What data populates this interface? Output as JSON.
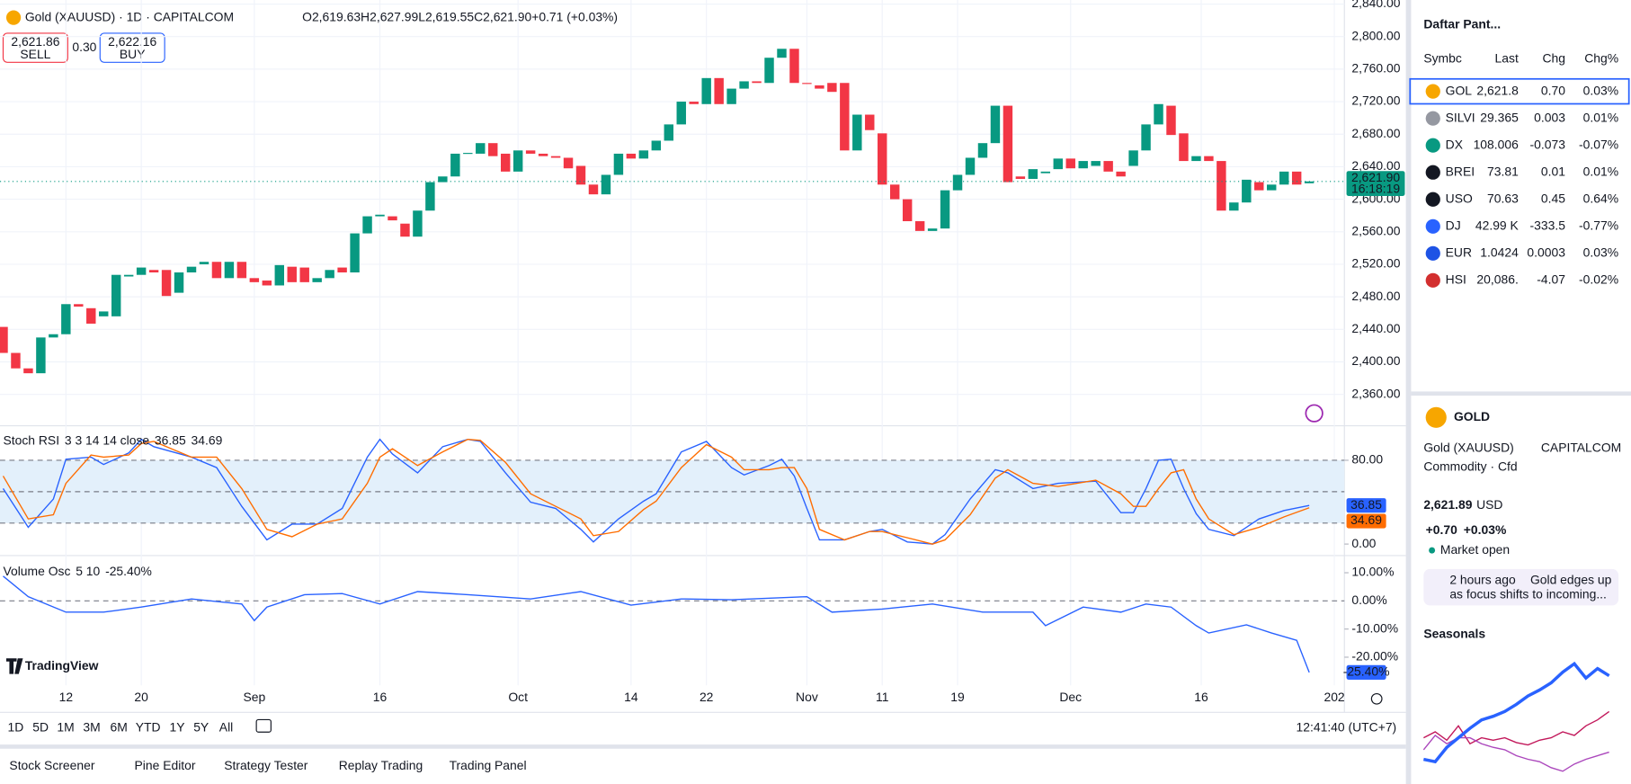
{
  "header": {
    "symbol": "Gold (XAUUSD) · 1D · CAPITALCOM",
    "ohlc": [
      "O",
      "2,619.63",
      "H",
      "2,627.99",
      "L",
      "2,619.55",
      "C",
      "2,621.90",
      "+0.71 (+0.03%)"
    ],
    "sell_price": "2,621.86",
    "sell": "SELL",
    "spread": "0.30",
    "buy_price": "2,622.16",
    "buy": "BUY",
    "price_tag": "2,621.90",
    "countdown": "16:18:19"
  },
  "stoch_legend": {
    "name": "Stoch RSI",
    "params": "3 3 14 14 close",
    "k": "36.85",
    "d": "34.69"
  },
  "vol_legend": {
    "name": "Volume Osc",
    "params": "5 10",
    "value": "-25.40%"
  },
  "logo": "TradingView",
  "timeframes": [
    "1D",
    "5D",
    "1M",
    "3M",
    "6M",
    "YTD",
    "1Y",
    "5Y",
    "All"
  ],
  "clock": "12:41:40 (UTC+7)",
  "tabs": [
    "Stock Screener",
    "Pine Editor",
    "Strategy Tester",
    "Replay Trading",
    "Trading Panel"
  ],
  "watchlist": {
    "title": "Daftar Pant...",
    "columns": [
      "Symbc",
      "Last",
      "Chg",
      "Chg%"
    ],
    "rows": [
      [
        "GOL",
        "2,621.8",
        "0.70",
        "0.03%"
      ],
      [
        "SILVI",
        "29.365",
        "0.003",
        "0.01%"
      ],
      [
        "DX",
        "108.006",
        "-0.073",
        "-0.07%"
      ],
      [
        "BREI",
        "73.81",
        "0.01",
        "0.01%"
      ],
      [
        "USO",
        "70.63",
        "0.45",
        "0.64%"
      ],
      [
        "DJ",
        "42.99 K",
        "-333.5",
        "-0.77%"
      ],
      [
        "EUR",
        "1.0424",
        "0.0003",
        "0.03%"
      ],
      [
        "HSI",
        "20,086.",
        "-4.07",
        "-0.02%"
      ]
    ]
  },
  "details": {
    "ticker": "GOLD",
    "name": "Gold (XAUUSD)",
    "exchange": "CAPITALCOM",
    "kind": "Commodity · Cfd",
    "price": "2,621.89",
    "currency": "USD",
    "change": "+0.70",
    "change_pct": "+0.03%",
    "status": "Market open",
    "news_time": "2 hours ago",
    "news_lines": [
      "Gold edges up",
      "as focus shifts to incoming..."
    ],
    "seasonals": "Seasonals"
  },
  "chart_data": [
    {
      "type": "candlestick",
      "up_color": "#089981",
      "down_color": "#f23645",
      "xlim": [
        -0.25,
        106.8
      ],
      "ylim": [
        2324,
        2845
      ],
      "grid": true,
      "xticks": [
        {
          "value": 5,
          "label": "12"
        },
        {
          "value": 11,
          "label": "20"
        },
        {
          "value": 20,
          "label": "Sep"
        },
        {
          "value": 30,
          "label": "16"
        },
        {
          "value": 41,
          "label": "Oct"
        },
        {
          "value": 50,
          "label": "14"
        },
        {
          "value": 56,
          "label": "22"
        },
        {
          "value": 64,
          "label": "Nov"
        },
        {
          "value": 70,
          "label": "11"
        },
        {
          "value": 76,
          "label": "19"
        },
        {
          "value": 85,
          "label": "Dec"
        },
        {
          "value": 95.4,
          "label": "16"
        },
        {
          "value": 106,
          "label": "202"
        }
      ],
      "yticks": [
        {
          "value": 2360,
          "label": "2,360.00"
        },
        {
          "value": 2400,
          "label": "2,400.00"
        },
        {
          "value": 2440,
          "label": "2,440.00"
        },
        {
          "value": 2480,
          "label": "2,480.00"
        },
        {
          "value": 2520,
          "label": "2,520.00"
        },
        {
          "value": 2560,
          "label": "2,560.00"
        },
        {
          "value": 2600,
          "label": "2,600.00"
        },
        {
          "value": 2640,
          "label": "2,640.00"
        },
        {
          "value": 2680,
          "label": "2,680.00"
        },
        {
          "value": 2720,
          "label": "2,720.00"
        },
        {
          "value": 2760,
          "label": "2,760.00"
        },
        {
          "value": 2800,
          "label": "2,800.00"
        },
        {
          "value": 2840,
          "label": "2,840.00"
        }
      ],
      "open": [
        2443,
        2411,
        2392,
        2386,
        2430,
        2434,
        2471,
        2466,
        2456,
        2456,
        2505,
        2507,
        2513,
        2513,
        2485,
        2510,
        2520,
        2523,
        2503,
        2523,
        2503,
        2500,
        2494,
        2517,
        2516,
        2498,
        2503,
        2516,
        2510,
        2558,
        2579,
        2579,
        2570,
        2554,
        2586,
        2621,
        2628,
        2656,
        2656,
        2669,
        2656,
        2634,
        2660,
        2656,
        2653,
        2651,
        2641,
        2618,
        2606,
        2630,
        2656,
        2650,
        2660,
        2672,
        2692,
        2720,
        2717,
        2749,
        2717,
        2736,
        2745,
        2743,
        2774,
        2785,
        2743,
        2740,
        2743,
        2743,
        2660,
        2704,
        2681,
        2618,
        2600,
        2573,
        2561,
        2564,
        2611,
        2630,
        2651,
        2669,
        2715,
        2628,
        2625,
        2632,
        2637,
        2650,
        2638,
        2641,
        2647,
        2634,
        2641,
        2660,
        2692,
        2715,
        2681,
        2647,
        2653,
        2647,
        2586,
        2596,
        2621,
        2611,
        2618,
        2634,
        2619.63
      ],
      "close": [
        2411,
        2392,
        2386,
        2430,
        2434,
        2471,
        2468,
        2447,
        2462,
        2507,
        2507,
        2516,
        2510,
        2481,
        2510,
        2517,
        2523,
        2503,
        2523,
        2503,
        2498,
        2494,
        2519,
        2498,
        2498,
        2503,
        2513,
        2510,
        2558,
        2579,
        2581,
        2574,
        2554,
        2586,
        2621,
        2628,
        2656,
        2657,
        2669,
        2653,
        2634,
        2660,
        2656,
        2653,
        2651,
        2638,
        2618,
        2606,
        2630,
        2656,
        2650,
        2660,
        2672,
        2692,
        2720,
        2717,
        2749,
        2717,
        2736,
        2745,
        2743,
        2774,
        2785,
        2743,
        2742,
        2736,
        2732,
        2660,
        2704,
        2685,
        2618,
        2600,
        2573,
        2561,
        2564,
        2611,
        2630,
        2651,
        2669,
        2715,
        2621,
        2625,
        2637,
        2634,
        2650,
        2638,
        2647,
        2647,
        2634,
        2628,
        2660,
        2692,
        2717,
        2679,
        2647,
        2653,
        2647,
        2586,
        2596,
        2624,
        2611,
        2618,
        2634,
        2618,
        2621.9
      ]
    },
    {
      "type": "line",
      "xlim": [
        -0.25,
        106.8
      ],
      "ylim": [
        -9,
        111
      ],
      "band": [
        20,
        80
      ],
      "midline": 50,
      "band_color": "#e3f0fb",
      "yticks": [
        {
          "value": 80,
          "label": "80.00"
        },
        {
          "value": 0,
          "label": "0.00"
        }
      ],
      "x": [
        0,
        2,
        4,
        5,
        7,
        8,
        10,
        11,
        12,
        15,
        17,
        19,
        21,
        23,
        25,
        27,
        29,
        30,
        31,
        33,
        35,
        37,
        38,
        40,
        42,
        44,
        46,
        47,
        49,
        51,
        52,
        54,
        56,
        58,
        59,
        61,
        62,
        63,
        64,
        65,
        67,
        69,
        70,
        72,
        74,
        75,
        77,
        79,
        80,
        82,
        84,
        87,
        89,
        90,
        91,
        92,
        93,
        94,
        95,
        96,
        98,
        100,
        102,
        104
      ],
      "series": [
        {
          "color": "#2962ff",
          "values": [
            53,
            16,
            43,
            81,
            83,
            76,
            87,
            100,
            93,
            83,
            73,
            36,
            4,
            19,
            19,
            34,
            83,
            100,
            86,
            68,
            93,
            100,
            98,
            68,
            40,
            34,
            14,
            2,
            24,
            41,
            48,
            88,
            98,
            73,
            66,
            75,
            81,
            65,
            34,
            4,
            4,
            12,
            14,
            2,
            0,
            9,
            43,
            71,
            68,
            53,
            58,
            60,
            30,
            30,
            53,
            80,
            81,
            53,
            29,
            14,
            8,
            24,
            32,
            36.85
          ]
        },
        {
          "color": "#ff6d00",
          "values": [
            65,
            24,
            28,
            58,
            85,
            83,
            85,
            96,
            98,
            83,
            83,
            53,
            14,
            7,
            19,
            24,
            58,
            83,
            91,
            75,
            88,
            100,
            99,
            78,
            48,
            36,
            24,
            8,
            12,
            33,
            41,
            73,
            95,
            83,
            71,
            71,
            73,
            73,
            53,
            14,
            4,
            12,
            12,
            6,
            0,
            4,
            28,
            63,
            71,
            58,
            55,
            61,
            48,
            36,
            36,
            53,
            68,
            71,
            43,
            24,
            9,
            16,
            26,
            34.69
          ]
        }
      ]
    },
    {
      "type": "line",
      "xlim": [
        -0.25,
        106.8
      ],
      "ylim": [
        -30,
        15
      ],
      "yticks": [
        {
          "value": 10,
          "label": "10.00%"
        },
        {
          "value": 0,
          "label": "0.00%"
        },
        {
          "value": -10,
          "label": "-10.00%"
        },
        {
          "value": -20,
          "label": "-20.00%"
        }
      ],
      "x": [
        0,
        2,
        5,
        8,
        11,
        15,
        19,
        20,
        21,
        24,
        27,
        30,
        33,
        37,
        42,
        46,
        50,
        54,
        58,
        64,
        66,
        70,
        74,
        78,
        82,
        83,
        86,
        89,
        91,
        93,
        95,
        96,
        99,
        101,
        103,
        104
      ],
      "series": [
        {
          "color": "#2962ff",
          "values": [
            8.8,
            1.5,
            -4,
            -4,
            -2.2,
            0.7,
            -1.1,
            -7,
            -2.2,
            2.2,
            2.6,
            -1.1,
            3.3,
            2.2,
            0.7,
            3.3,
            -1.5,
            0.7,
            0.4,
            1.5,
            -4,
            -2.9,
            -1.1,
            -4,
            -4,
            -8.8,
            -2.2,
            -4,
            -1.1,
            -2.2,
            -8.8,
            -11.4,
            -8.5,
            -11.4,
            -14,
            -25.4
          ]
        }
      ]
    },
    {
      "type": "line",
      "ylim": [
        0,
        100
      ],
      "series": [
        {
          "color": "#c2185b",
          "values": [
            30,
            35,
            28,
            40,
            25,
            30,
            28,
            30,
            26,
            24,
            28,
            30,
            35,
            32,
            40,
            45,
            52
          ]
        },
        {
          "color": "#ab47bc",
          "values": [
            20,
            32,
            25,
            30,
            30,
            25,
            22,
            20,
            15,
            12,
            10,
            5,
            2,
            8,
            12,
            15,
            18
          ]
        },
        {
          "color": "#2962ff",
          "values": [
            12,
            10,
            22,
            30,
            38,
            45,
            48,
            52,
            58,
            65,
            70,
            76,
            85,
            92,
            80,
            88,
            82
          ]
        }
      ]
    }
  ]
}
